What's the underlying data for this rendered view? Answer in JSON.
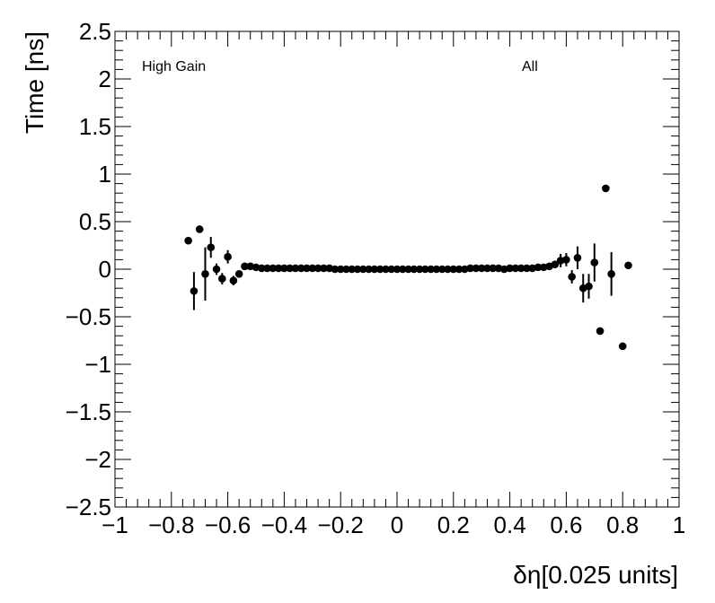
{
  "chart_data": {
    "type": "scatter",
    "xlabel": "δη[0.025 units]",
    "ylabel": "Time [ns]",
    "xlim": [
      -1,
      1
    ],
    "ylim": [
      -2.5,
      2.5
    ],
    "x_ticks": [
      -1,
      -0.8,
      -0.6,
      -0.4,
      -0.2,
      0,
      0.2,
      0.4,
      0.6,
      0.8,
      1
    ],
    "x_tick_labels": [
      "−1",
      "−0.8",
      "−0.6",
      "−0.4",
      "−0.2",
      "0",
      "0.2",
      "0.4",
      "0.6",
      "0.8",
      "1"
    ],
    "y_ticks": [
      -2.5,
      -2,
      -1.5,
      -1,
      -0.5,
      0,
      0.5,
      1,
      1.5,
      2,
      2.5
    ],
    "y_tick_labels": [
      "−2.5",
      "−2",
      "−1.5",
      "−1",
      "−0.5",
      "0",
      "0.5",
      "1",
      "1.5",
      "2",
      "2.5"
    ],
    "grid": false,
    "annotations": [
      "High Gain",
      "All"
    ],
    "series": [
      {
        "points": [
          {
            "x": -0.74,
            "y": 0.3,
            "err": 0
          },
          {
            "x": -0.72,
            "y": -0.23,
            "err": 0.2
          },
          {
            "x": -0.7,
            "y": 0.42,
            "err": 0
          },
          {
            "x": -0.68,
            "y": -0.05,
            "err": 0.28
          },
          {
            "x": -0.66,
            "y": 0.23,
            "err": 0.11
          },
          {
            "x": -0.64,
            "y": 0.0,
            "err": 0.06
          },
          {
            "x": -0.62,
            "y": -0.1,
            "err": 0.06
          },
          {
            "x": -0.6,
            "y": 0.13,
            "err": 0.07
          },
          {
            "x": -0.58,
            "y": -0.12,
            "err": 0.05
          },
          {
            "x": -0.56,
            "y": -0.05,
            "err": 0.03
          },
          {
            "x": -0.54,
            "y": 0.03,
            "err": 0.01
          },
          {
            "x": -0.52,
            "y": 0.03,
            "err": 0.01
          },
          {
            "x": -0.5,
            "y": 0.02,
            "err": 0
          },
          {
            "x": -0.48,
            "y": 0.01,
            "err": 0
          },
          {
            "x": -0.46,
            "y": 0.01,
            "err": 0
          },
          {
            "x": -0.44,
            "y": 0.01,
            "err": 0
          },
          {
            "x": -0.42,
            "y": 0.01,
            "err": 0
          },
          {
            "x": -0.4,
            "y": 0.01,
            "err": 0
          },
          {
            "x": -0.38,
            "y": 0.01,
            "err": 0
          },
          {
            "x": -0.36,
            "y": 0.01,
            "err": 0
          },
          {
            "x": -0.34,
            "y": 0.01,
            "err": 0
          },
          {
            "x": -0.32,
            "y": 0.01,
            "err": 0
          },
          {
            "x": -0.3,
            "y": 0.01,
            "err": 0
          },
          {
            "x": -0.28,
            "y": 0.01,
            "err": 0
          },
          {
            "x": -0.26,
            "y": 0.01,
            "err": 0
          },
          {
            "x": -0.24,
            "y": 0.01,
            "err": 0
          },
          {
            "x": -0.22,
            "y": 0.0,
            "err": 0
          },
          {
            "x": -0.2,
            "y": 0.0,
            "err": 0
          },
          {
            "x": -0.18,
            "y": 0.0,
            "err": 0
          },
          {
            "x": -0.16,
            "y": 0.0,
            "err": 0
          },
          {
            "x": -0.14,
            "y": 0.0,
            "err": 0
          },
          {
            "x": -0.12,
            "y": 0.0,
            "err": 0
          },
          {
            "x": -0.1,
            "y": 0.0,
            "err": 0
          },
          {
            "x": -0.08,
            "y": 0.0,
            "err": 0
          },
          {
            "x": -0.06,
            "y": 0.0,
            "err": 0
          },
          {
            "x": -0.04,
            "y": 0.0,
            "err": 0
          },
          {
            "x": -0.02,
            "y": 0.0,
            "err": 0
          },
          {
            "x": 0.0,
            "y": 0.0,
            "err": 0
          },
          {
            "x": 0.02,
            "y": 0.0,
            "err": 0
          },
          {
            "x": 0.04,
            "y": 0.0,
            "err": 0
          },
          {
            "x": 0.06,
            "y": 0.0,
            "err": 0
          },
          {
            "x": 0.08,
            "y": 0.0,
            "err": 0
          },
          {
            "x": 0.1,
            "y": 0.0,
            "err": 0
          },
          {
            "x": 0.12,
            "y": 0.0,
            "err": 0
          },
          {
            "x": 0.14,
            "y": 0.0,
            "err": 0
          },
          {
            "x": 0.16,
            "y": 0.0,
            "err": 0
          },
          {
            "x": 0.18,
            "y": 0.0,
            "err": 0
          },
          {
            "x": 0.2,
            "y": 0.0,
            "err": 0
          },
          {
            "x": 0.22,
            "y": 0.0,
            "err": 0
          },
          {
            "x": 0.24,
            "y": 0.0,
            "err": 0
          },
          {
            "x": 0.26,
            "y": 0.01,
            "err": 0
          },
          {
            "x": 0.28,
            "y": 0.01,
            "err": 0
          },
          {
            "x": 0.3,
            "y": 0.01,
            "err": 0
          },
          {
            "x": 0.32,
            "y": 0.01,
            "err": 0
          },
          {
            "x": 0.34,
            "y": 0.01,
            "err": 0
          },
          {
            "x": 0.36,
            "y": 0.01,
            "err": 0
          },
          {
            "x": 0.38,
            "y": 0.0,
            "err": 0
          },
          {
            "x": 0.4,
            "y": 0.01,
            "err": 0
          },
          {
            "x": 0.42,
            "y": 0.01,
            "err": 0
          },
          {
            "x": 0.44,
            "y": 0.01,
            "err": 0
          },
          {
            "x": 0.46,
            "y": 0.01,
            "err": 0
          },
          {
            "x": 0.48,
            "y": 0.01,
            "err": 0
          },
          {
            "x": 0.5,
            "y": 0.02,
            "err": 0
          },
          {
            "x": 0.52,
            "y": 0.02,
            "err": 0
          },
          {
            "x": 0.54,
            "y": 0.03,
            "err": 0.01
          },
          {
            "x": 0.56,
            "y": 0.05,
            "err": 0.02
          },
          {
            "x": 0.58,
            "y": 0.09,
            "err": 0.07
          },
          {
            "x": 0.6,
            "y": 0.1,
            "err": 0.07
          },
          {
            "x": 0.62,
            "y": -0.08,
            "err": 0.07
          },
          {
            "x": 0.64,
            "y": 0.12,
            "err": 0.12
          },
          {
            "x": 0.66,
            "y": -0.2,
            "err": 0.15
          },
          {
            "x": 0.68,
            "y": -0.18,
            "err": 0.13
          },
          {
            "x": 0.7,
            "y": 0.07,
            "err": 0.2
          },
          {
            "x": 0.72,
            "y": -0.65,
            "err": 0
          },
          {
            "x": 0.74,
            "y": 0.85,
            "err": 0
          },
          {
            "x": 0.76,
            "y": -0.05,
            "err": 0.23
          },
          {
            "x": 0.8,
            "y": -0.81,
            "err": 0
          },
          {
            "x": 0.82,
            "y": 0.04,
            "err": 0
          }
        ]
      }
    ]
  }
}
